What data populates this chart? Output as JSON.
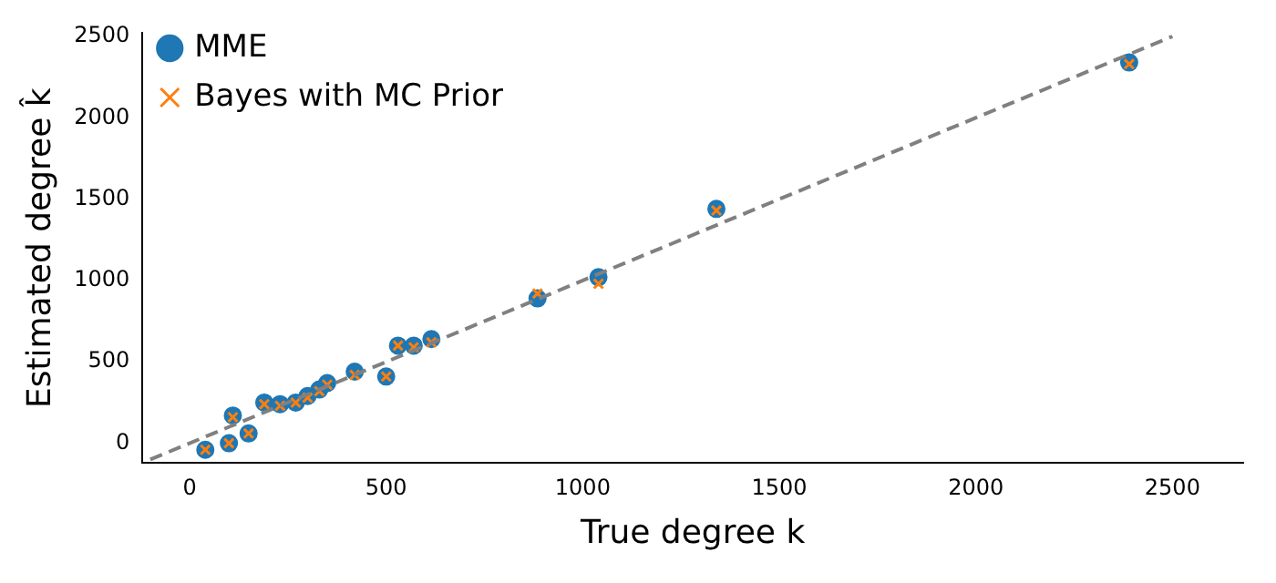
{
  "chart_data": {
    "type": "scatter",
    "xlabel": "True degree k",
    "ylabel": "Estimated degree k̂",
    "xlim": [
      -120,
      2680
    ],
    "ylim": [
      -120,
      2520
    ],
    "xticks": [
      0,
      500,
      1000,
      1500,
      2000,
      2500
    ],
    "yticks": [
      0,
      500,
      1000,
      1500,
      2000,
      2500
    ],
    "grid": false,
    "legend": "top left",
    "series": [
      {
        "name": "MME",
        "color": "#1f77b4",
        "marker": "circle",
        "x": [
          2390,
          1340,
          1040,
          885,
          615,
          570,
          530,
          500,
          420,
          350,
          330,
          300,
          270,
          230,
          190,
          110,
          150,
          100,
          40
        ],
        "values": [
          2340,
          1440,
          1020,
          890,
          640,
          600,
          600,
          410,
          440,
          370,
          330,
          290,
          250,
          240,
          250,
          170,
          60,
          0,
          -40
        ]
      },
      {
        "name": "Bayes with MC Prior",
        "color": "#ff7f0e",
        "marker": "cross",
        "x": [
          2390,
          1340,
          1040,
          885,
          615,
          570,
          530,
          500,
          420,
          350,
          330,
          300,
          270,
          230,
          190,
          110,
          150,
          100,
          40
        ],
        "values": [
          2330,
          1430,
          980,
          920,
          620,
          590,
          600,
          410,
          420,
          360,
          320,
          280,
          250,
          230,
          240,
          160,
          60,
          0,
          -40
        ]
      },
      {
        "type": "line",
        "color": "#808080",
        "line_style": "dashed",
        "marker": "none",
        "x": [
          -100,
          2500
        ],
        "values": [
          -100,
          2500
        ]
      }
    ]
  }
}
